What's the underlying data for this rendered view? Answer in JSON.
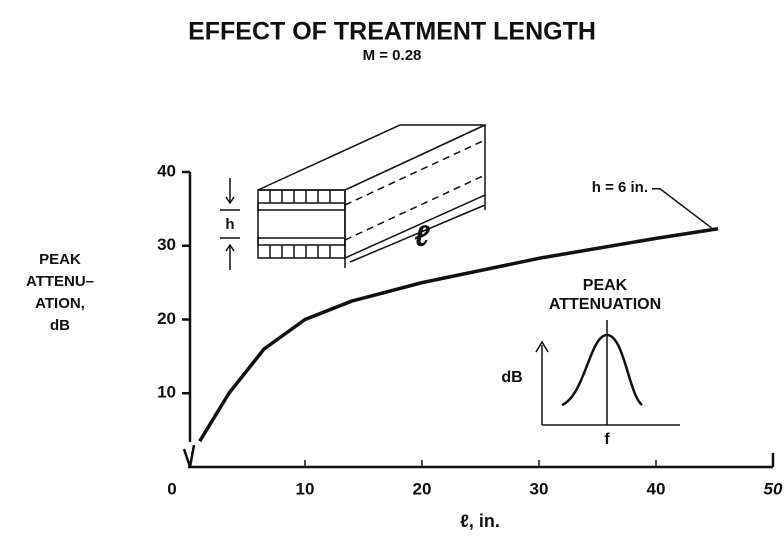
{
  "chart_data": {
    "type": "line",
    "title": "EFFECT OF TREATMENT LENGTH",
    "subtitle": "M = 0.28",
    "y_label": [
      "PEAK",
      "ATTENU–",
      "ATION,",
      "dB"
    ],
    "x_label": "ℓ, in.",
    "xlim": [
      0,
      50
    ],
    "xticks": [
      0,
      10,
      20,
      30,
      40,
      50
    ],
    "ylim": [
      0,
      40
    ],
    "yticks": [
      10,
      20,
      30,
      40
    ],
    "series": [
      {
        "name": "h = 6 in.",
        "color": "#111111",
        "x": [
          1,
          3.5,
          6.5,
          10,
          14,
          20,
          30,
          40,
          45.3
        ],
        "values": [
          3.5,
          10,
          16,
          20,
          22.5,
          25,
          28.3,
          31,
          32.3
        ]
      }
    ],
    "annotations": {
      "duct_height": "h",
      "duct_length": "ℓ",
      "inset_title": [
        "PEAK",
        "ATTENUATION"
      ],
      "inset_y": "dB",
      "inset_x": "f"
    }
  }
}
